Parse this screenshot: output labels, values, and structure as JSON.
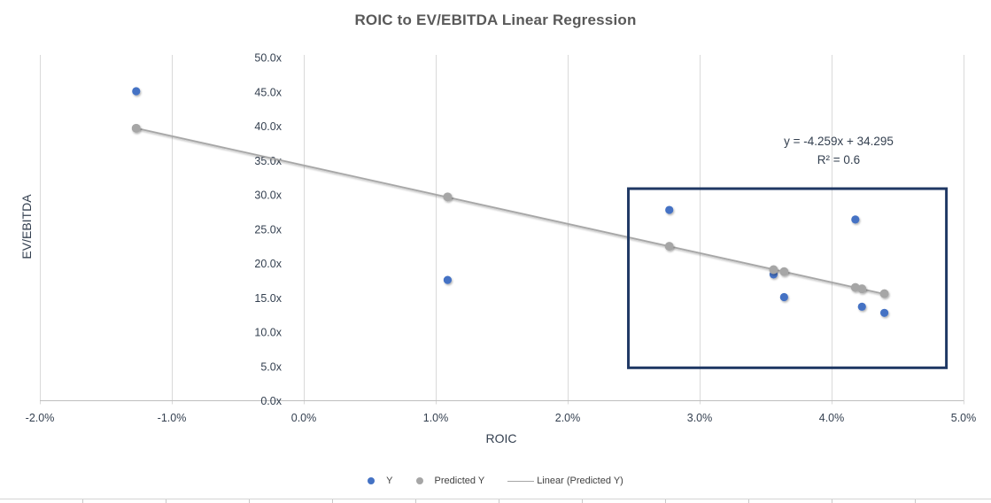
{
  "title": "ROIC to EV/EBITDA Linear Regression",
  "colors": {
    "title_text": "#595959",
    "axis_text": "#333F4F",
    "gridline": "#D9D9D9",
    "axis_line": "#BFBFBF",
    "legend_text": "#404040"
  },
  "chart_data": {
    "type": "scatter",
    "title": "ROIC to EV/EBITDA Linear Regression",
    "xlabel": "ROIC",
    "ylabel": "EV/EBITDA",
    "xlim": [
      -2,
      5
    ],
    "ylim": [
      0,
      50
    ],
    "x_ticks": {
      "values": [
        -2,
        -1,
        0,
        1,
        2,
        3,
        4,
        5
      ],
      "labels": [
        "-2.0%",
        "-1.0%",
        "0.0%",
        "1.0%",
        "2.0%",
        "3.0%",
        "4.0%",
        "5.0%"
      ]
    },
    "y_ticks": {
      "values": [
        0,
        5,
        10,
        15,
        20,
        25,
        30,
        35,
        40,
        45,
        50
      ],
      "labels": [
        "0.0x",
        "5.0x",
        "10.0x",
        "15.0x",
        "20.0x",
        "25.0x",
        "30.0x",
        "35.0x",
        "40.0x",
        "45.0x",
        "50.0x"
      ]
    },
    "grid": "vertical-major-only",
    "x": [
      -1.27,
      1.09,
      2.77,
      3.56,
      3.64,
      4.18,
      4.23,
      4.4
    ],
    "series": [
      {
        "name": "Y",
        "type": "scatter",
        "color": "#4472C4",
        "values": [
          45.1,
          17.6,
          27.8,
          18.4,
          15.1,
          26.4,
          13.7,
          12.8
        ]
      },
      {
        "name": "Predicted Y",
        "type": "scatter",
        "color": "#A6A6A6",
        "values": [
          39.7,
          29.7,
          22.5,
          19.1,
          18.8,
          16.5,
          16.3,
          15.6
        ]
      }
    ],
    "trendline": {
      "name": "Linear (Predicted Y)",
      "color": "#A6A6A6",
      "slope": -4.259,
      "intercept": 34.295,
      "x_start": -1.27,
      "x_end": 4.4
    },
    "annotation": {
      "line1": "y = -4.259x + 34.295",
      "line2": "R² = 0.6"
    },
    "highlight_box": {
      "x1": 2.46,
      "x2": 4.87,
      "y1": 4.8,
      "y2": 30.9,
      "color": "#1F3864",
      "stroke_width": 3
    },
    "legend": [
      {
        "label": "Y",
        "marker": "dot",
        "color": "#4472C4"
      },
      {
        "label": "Predicted Y",
        "marker": "dot",
        "color": "#A6A6A6"
      },
      {
        "label": "Linear (Predicted Y)",
        "marker": "line",
        "color": "#A6A6A6"
      }
    ],
    "legend_position": "bottom"
  }
}
